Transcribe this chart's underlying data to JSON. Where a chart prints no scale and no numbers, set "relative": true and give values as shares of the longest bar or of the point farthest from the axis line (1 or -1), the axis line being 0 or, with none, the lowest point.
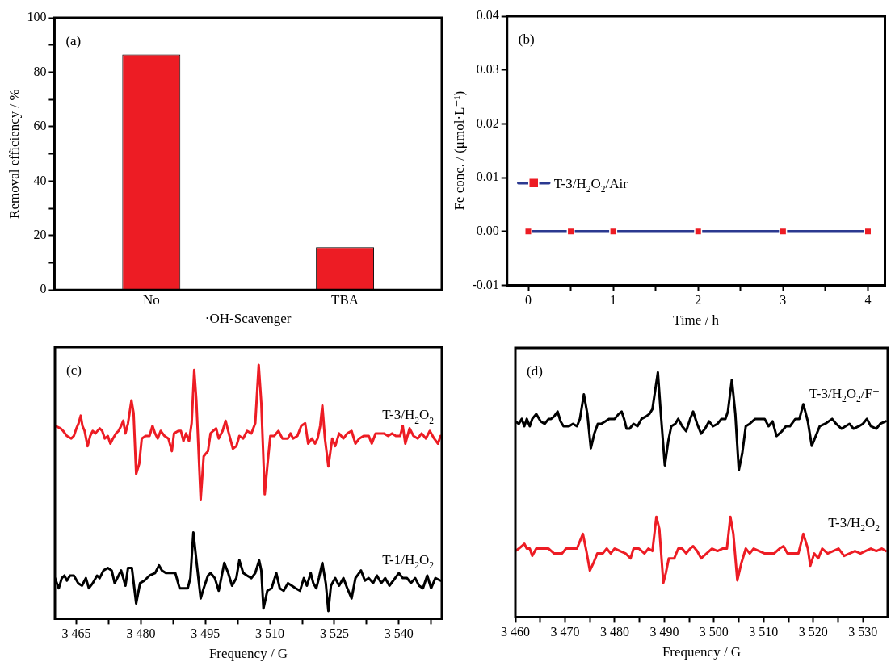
{
  "chart_data": [
    {
      "type": "bar",
      "xlabel": "·OH-Scavenger",
      "ylabel": "Removal efficiency / %",
      "annotations": [
        "(a)"
      ],
      "categories": [
        "No",
        "TBA"
      ],
      "values": [
        86.5,
        15.7
      ],
      "color": "#ed1c24",
      "ylim": [
        0,
        100
      ],
      "yticks": [
        0,
        {
          "value": 10,
          "label": null
        },
        20,
        {
          "value": 30,
          "label": null
        },
        40,
        {
          "value": 50,
          "label": null
        },
        60,
        {
          "value": 70,
          "label": null
        },
        80,
        {
          "value": 90,
          "label": null
        },
        100
      ]
    },
    {
      "type": "line",
      "xlabel": "Time / h",
      "ylabel": "Fe conc. / (μmol·L⁻¹)",
      "annotations": [
        "(b)"
      ],
      "legend": "left",
      "marker": "square",
      "x": [
        0,
        0.5,
        1,
        2,
        3,
        4
      ],
      "series": [
        {
          "name": "T-3/H$_{2}$O$_{2}$/Air",
          "color": "#2b3990",
          "colors": [
            "#ed1c24",
            "#ed1c24",
            "#ed1c24",
            "#ed1c24",
            "#ed1c24",
            "#ed1c24"
          ],
          "values": [
            0,
            0,
            0,
            0,
            0,
            0
          ]
        }
      ],
      "xlim": [
        -0.25,
        4.2
      ],
      "xticks": [
        0,
        {
          "value": 0.5,
          "label": null
        },
        1,
        {
          "value": 1.5,
          "label": null
        },
        2,
        {
          "value": 2.5,
          "label": null
        },
        3,
        {
          "value": 3.5,
          "label": null
        },
        4
      ],
      "ylim": [
        -0.01,
        0.04
      ],
      "yticks": [
        {
          "value": -0.01,
          "label": "-0.01"
        },
        {
          "value": 0,
          "label": "0.00"
        },
        {
          "value": 0.01,
          "label": "0.01"
        },
        {
          "value": 0.02,
          "label": "0.02"
        },
        {
          "value": 0.03,
          "label": "0.03"
        },
        {
          "value": 0.04,
          "label": "0.04"
        }
      ]
    },
    {
      "type": "line",
      "xlabel": "Frequency / G",
      "annotations": [
        "(c)"
      ],
      "relative": true,
      "marker": "none",
      "series": [
        {
          "name": "T-3/H$_{2}$O$_{2}$",
          "color": "#ed1c24",
          "x": [
            3460.0,
            3461.3,
            3461.9,
            3462.8,
            3463.8,
            3464.4,
            3465.0,
            3465.5,
            3466.0,
            3466.4,
            3466.9,
            3467.6,
            3468.2,
            3468.8,
            3469.4,
            3470.4,
            3471.0,
            3471.6,
            3472.3,
            3472.9,
            3473.5,
            3474.2,
            3474.8,
            3475.4,
            3475.9,
            3476.4,
            3477.0,
            3477.8,
            3478.3,
            3478.9,
            3479.6,
            3480.2,
            3481.1,
            3482.0,
            3482.7,
            3483.3,
            3483.9,
            3484.6,
            3485.5,
            3486.4,
            3487.2,
            3487.7,
            3488.7,
            3489.3,
            3489.9,
            3490.5,
            3491.2,
            3491.8,
            3492.4,
            3492.9,
            3493.9,
            3494.6,
            3495.6,
            3496.2,
            3496.8,
            3497.5,
            3498.1,
            3499.0,
            3499.7,
            3500.3,
            3501.4,
            3502.2,
            3502.9,
            3503.8,
            3504.7,
            3505.7,
            3506.6,
            3507.4,
            3508.0,
            3508.8,
            3509.4,
            3510.1,
            3511.0,
            3512.0,
            3512.9,
            3513.5,
            3514.2,
            3514.8,
            3515.4,
            3516.4,
            3517.3,
            3518.2,
            3518.9,
            3519.8,
            3520.5,
            3521.1,
            3521.7,
            3522.2,
            3522.8,
            3523.6,
            3524.5,
            3525.2,
            3526.1,
            3527.1,
            3528.0,
            3529.0,
            3529.9,
            3530.8,
            3531.8,
            3533.0,
            3533.7,
            3534.6,
            3535.6,
            3536.5,
            3537.5,
            3538.4,
            3539.3,
            3540.3,
            3540.9,
            3541.5,
            3542.5,
            3543.4,
            3544.4,
            3545.3,
            3546.3,
            3547.2,
            3548.2,
            3549.1,
            3549.7
          ],
          "values": [
            0.76,
            0.75,
            0.74,
            0.72,
            0.71,
            0.72,
            0.75,
            0.77,
            0.8,
            0.76,
            0.74,
            0.68,
            0.72,
            0.74,
            0.73,
            0.75,
            0.74,
            0.71,
            0.72,
            0.69,
            0.71,
            0.73,
            0.74,
            0.76,
            0.78,
            0.73,
            0.77,
            0.86,
            0.81,
            0.57,
            0.61,
            0.71,
            0.72,
            0.72,
            0.76,
            0.73,
            0.71,
            0.74,
            0.72,
            0.71,
            0.66,
            0.73,
            0.74,
            0.74,
            0.7,
            0.73,
            0.7,
            0.77,
            0.98,
            0.86,
            0.47,
            0.64,
            0.66,
            0.73,
            0.74,
            0.75,
            0.71,
            0.74,
            0.78,
            0.74,
            0.67,
            0.68,
            0.72,
            0.71,
            0.74,
            0.73,
            0.77,
            1,
            0.85,
            0.49,
            0.6,
            0.72,
            0.72,
            0.74,
            0.71,
            0.71,
            0.71,
            0.73,
            0.71,
            0.72,
            0.76,
            0.77,
            0.69,
            0.71,
            0.69,
            0.71,
            0.76,
            0.84,
            0.71,
            0.6,
            0.71,
            0.68,
            0.73,
            0.71,
            0.73,
            0.74,
            0.69,
            0.71,
            0.72,
            0.72,
            0.69,
            0.73,
            0.73,
            0.73,
            0.72,
            0.73,
            0.72,
            0.72,
            0.76,
            0.69,
            0.75,
            0.72,
            0.71,
            0.73,
            0.71,
            0.74,
            0.71,
            0.69,
            0.72
          ]
        },
        {
          "name": "T-1/H$_{2}$O$_{2}$",
          "color": "#000000",
          "x": [
            3460.0,
            3460.9,
            3461.6,
            3462.2,
            3462.8,
            3463.5,
            3464.4,
            3465.4,
            3466.3,
            3467.2,
            3467.9,
            3468.8,
            3469.8,
            3470.4,
            3471.3,
            3472.3,
            3473.2,
            3473.9,
            3474.8,
            3475.4,
            3476.4,
            3477.0,
            3477.9,
            3478.9,
            3479.8,
            3480.8,
            3482.0,
            3483.3,
            3484.2,
            3484.9,
            3485.8,
            3487.1,
            3488.0,
            3489.0,
            3489.9,
            3490.9,
            3491.5,
            3492.2,
            3492.9,
            3493.9,
            3494.6,
            3495.6,
            3496.2,
            3497.2,
            3498.1,
            3499.4,
            3500.3,
            3501.2,
            3502.2,
            3502.9,
            3503.8,
            3504.7,
            3505.7,
            3506.6,
            3507.5,
            3508.0,
            3508.5,
            3509.4,
            3510.4,
            3511.5,
            3512.3,
            3513.2,
            3514.2,
            3515.1,
            3516.0,
            3517.0,
            3517.9,
            3518.6,
            3519.5,
            3520.1,
            3520.8,
            3521.4,
            3522.2,
            3523.0,
            3523.6,
            3524.2,
            3525.2,
            3526.1,
            3527.1,
            3528.0,
            3529.0,
            3529.9,
            3531.2,
            3532.1,
            3533.0,
            3534.0,
            3534.9,
            3535.9,
            3536.8,
            3537.8,
            3538.7,
            3540.0,
            3540.9,
            3541.9,
            3542.8,
            3543.8,
            3544.7,
            3545.6,
            3546.6,
            3547.5,
            3548.5,
            3549.7
          ],
          "values": [
            0.16,
            0.12,
            0.16,
            0.17,
            0.15,
            0.17,
            0.17,
            0.14,
            0.13,
            0.16,
            0.12,
            0.14,
            0.17,
            0.16,
            0.19,
            0.2,
            0.19,
            0.14,
            0.17,
            0.19,
            0.13,
            0.2,
            0.2,
            0.06,
            0.14,
            0.15,
            0.17,
            0.18,
            0.21,
            0.19,
            0.18,
            0.18,
            0.18,
            0.12,
            0.12,
            0.12,
            0.16,
            0.34,
            0.23,
            0.08,
            0.12,
            0.17,
            0.18,
            0.16,
            0.11,
            0.22,
            0.18,
            0.13,
            0.16,
            0.23,
            0.18,
            0.17,
            0.16,
            0.18,
            0.23,
            0.19,
            0.04,
            0.11,
            0.12,
            0.18,
            0.12,
            0.11,
            0.14,
            0.13,
            0.12,
            0.11,
            0.16,
            0.13,
            0.18,
            0.14,
            0.12,
            0.16,
            0.22,
            0.14,
            0.03,
            0.13,
            0.16,
            0.13,
            0.16,
            0.12,
            0.08,
            0.16,
            0.19,
            0.15,
            0.16,
            0.14,
            0.17,
            0.14,
            0.16,
            0.13,
            0.15,
            0.18,
            0.16,
            0.16,
            0.14,
            0.16,
            0.13,
            0.12,
            0.17,
            0.12,
            0.16,
            0.15
          ]
        }
      ],
      "xlim": [
        3460,
        3550
      ],
      "xticks": [
        {
          "value": 3465,
          "label": "3 465"
        },
        {
          "value": 3472.5,
          "label": null
        },
        {
          "value": 3480,
          "label": "3 480"
        },
        {
          "value": 3487.5,
          "label": null
        },
        {
          "value": 3495,
          "label": "3 495"
        },
        {
          "value": 3502.5,
          "label": null
        },
        {
          "value": 3510,
          "label": "3 510"
        },
        {
          "value": 3517.5,
          "label": null
        },
        {
          "value": 3525,
          "label": "3 525"
        },
        {
          "value": 3532.5,
          "label": null
        },
        {
          "value": 3540,
          "label": "3 540"
        },
        {
          "value": 3547.5,
          "label": null
        }
      ]
    },
    {
      "type": "line",
      "xlabel": "Frequency / G",
      "annotations": [
        "(d)"
      ],
      "relative": true,
      "marker": "none",
      "series": [
        {
          "name": "T-3/H$_{2}$O$_{2}$/F⁻",
          "color": "#000000",
          "x": [
            3460.0,
            3460.7,
            3461.3,
            3461.8,
            3462.3,
            3462.9,
            3463.4,
            3464.2,
            3465.1,
            3465.9,
            3466.7,
            3467.2,
            3467.8,
            3468.5,
            3469.1,
            3469.7,
            3470.8,
            3471.6,
            3472.4,
            3473.0,
            3473.8,
            3474.5,
            3475.2,
            3475.9,
            3476.6,
            3477.3,
            3478.1,
            3478.9,
            3480.0,
            3480.8,
            3481.4,
            3481.9,
            3482.4,
            3483.0,
            3483.8,
            3484.6,
            3485.4,
            3486.3,
            3487.0,
            3487.6,
            3488.7,
            3489.3,
            3490.1,
            3490.8,
            3491.4,
            3492.2,
            3492.8,
            3493.6,
            3494.4,
            3495.2,
            3495.8,
            3496.6,
            3497.4,
            3498.2,
            3499.0,
            3499.8,
            3500.7,
            3501.5,
            3502.3,
            3502.8,
            3503.6,
            3504.3,
            3505.0,
            3505.7,
            3506.4,
            3507.2,
            3508.3,
            3509.3,
            3510.2,
            3511.0,
            3511.8,
            3512.6,
            3513.7,
            3514.5,
            3515.3,
            3516.4,
            3517.2,
            3518.0,
            3518.9,
            3519.7,
            3520.5,
            3521.3,
            3522.4,
            3523.8,
            3524.6,
            3525.7,
            3526.5,
            3527.3,
            3528.1,
            3529.2,
            3530.0,
            3530.8,
            3531.6,
            3532.7,
            3533.5,
            3534.6
          ],
          "values": [
            0.8,
            0.79,
            0.81,
            0.78,
            0.81,
            0.78,
            0.81,
            0.83,
            0.8,
            0.79,
            0.81,
            0.81,
            0.82,
            0.84,
            0.8,
            0.78,
            0.78,
            0.79,
            0.78,
            0.81,
            0.91,
            0.83,
            0.69,
            0.75,
            0.79,
            0.79,
            0.8,
            0.81,
            0.81,
            0.83,
            0.84,
            0.81,
            0.77,
            0.77,
            0.79,
            0.78,
            0.81,
            0.82,
            0.83,
            0.85,
            1,
            0.83,
            0.62,
            0.72,
            0.78,
            0.79,
            0.81,
            0.78,
            0.76,
            0.81,
            0.84,
            0.79,
            0.75,
            0.77,
            0.8,
            0.78,
            0.79,
            0.81,
            0.81,
            0.84,
            0.97,
            0.83,
            0.6,
            0.67,
            0.78,
            0.79,
            0.81,
            0.81,
            0.81,
            0.78,
            0.8,
            0.74,
            0.76,
            0.78,
            0.78,
            0.81,
            0.81,
            0.87,
            0.8,
            0.7,
            0.74,
            0.78,
            0.79,
            0.81,
            0.79,
            0.77,
            0.78,
            0.79,
            0.77,
            0.78,
            0.79,
            0.81,
            0.78,
            0.77,
            0.79,
            0.8
          ]
        },
        {
          "name": "T-3/H$_{2}$O$_{2}$",
          "color": "#ed1c24",
          "x": [
            3460.0,
            3460.7,
            3461.3,
            3461.8,
            3462.3,
            3462.9,
            3463.4,
            3464.2,
            3465.1,
            3465.9,
            3466.7,
            3467.8,
            3468.6,
            3469.4,
            3470.2,
            3471.6,
            3472.4,
            3473.6,
            3474.3,
            3475.0,
            3475.7,
            3476.5,
            3477.6,
            3478.4,
            3479.2,
            3480.0,
            3481.1,
            3482.2,
            3483.2,
            3483.8,
            3484.9,
            3486.0,
            3486.8,
            3487.6,
            3488.4,
            3489.0,
            3489.8,
            3490.3,
            3490.9,
            3492.0,
            3492.8,
            3493.6,
            3494.4,
            3495.2,
            3495.8,
            3496.6,
            3497.4,
            3498.5,
            3499.6,
            3500.7,
            3501.7,
            3502.6,
            3503.3,
            3503.9,
            3504.7,
            3505.5,
            3506.4,
            3507.2,
            3508.0,
            3509.1,
            3510.2,
            3511.0,
            3512.1,
            3513.2,
            3514.0,
            3514.8,
            3515.9,
            3517.0,
            3518.0,
            3518.9,
            3519.4,
            3520.2,
            3521.0,
            3521.8,
            3522.9,
            3524.0,
            3525.1,
            3526.2,
            3527.3,
            3528.4,
            3529.5,
            3530.5,
            3531.6,
            3532.7,
            3533.8,
            3534.6
          ],
          "values": [
            0.27,
            0.28,
            0.29,
            0.3,
            0.28,
            0.28,
            0.25,
            0.28,
            0.28,
            0.28,
            0.28,
            0.26,
            0.26,
            0.26,
            0.28,
            0.28,
            0.28,
            0.34,
            0.27,
            0.19,
            0.22,
            0.26,
            0.26,
            0.28,
            0.26,
            0.28,
            0.27,
            0.26,
            0.24,
            0.28,
            0.28,
            0.26,
            0.28,
            0.27,
            0.41,
            0.36,
            0.14,
            0.18,
            0.24,
            0.24,
            0.28,
            0.28,
            0.26,
            0.28,
            0.29,
            0.27,
            0.24,
            0.26,
            0.28,
            0.27,
            0.28,
            0.28,
            0.41,
            0.34,
            0.15,
            0.22,
            0.28,
            0.26,
            0.28,
            0.27,
            0.26,
            0.26,
            0.26,
            0.28,
            0.29,
            0.26,
            0.26,
            0.26,
            0.34,
            0.28,
            0.21,
            0.26,
            0.24,
            0.28,
            0.26,
            0.27,
            0.28,
            0.25,
            0.26,
            0.27,
            0.26,
            0.27,
            0.28,
            0.27,
            0.28,
            0.27
          ]
        }
      ],
      "xlim": [
        3460,
        3535
      ],
      "xticks": [
        {
          "value": 3460,
          "label": "3 460"
        },
        {
          "value": 3465,
          "label": null
        },
        {
          "value": 3470,
          "label": "3 470"
        },
        {
          "value": 3475,
          "label": null
        },
        {
          "value": 3480,
          "label": "3 480"
        },
        {
          "value": 3485,
          "label": null
        },
        {
          "value": 3490,
          "label": "3 490"
        },
        {
          "value": 3495,
          "label": null
        },
        {
          "value": 3500,
          "label": "3 500"
        },
        {
          "value": 3505,
          "label": null
        },
        {
          "value": 3510,
          "label": "3 510"
        },
        {
          "value": 3515,
          "label": null
        },
        {
          "value": 3520,
          "label": "3 520"
        },
        {
          "value": 3525,
          "label": null
        },
        {
          "value": 3530,
          "label": "3 530"
        }
      ]
    }
  ]
}
